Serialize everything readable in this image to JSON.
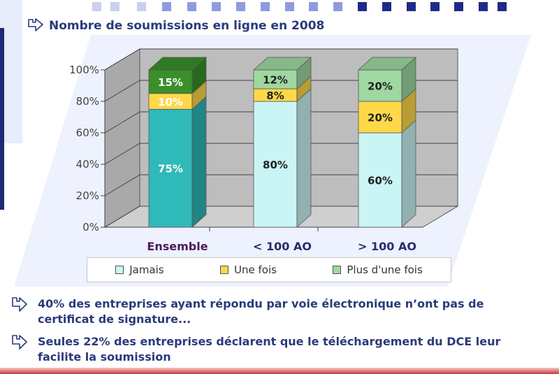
{
  "title": "Nombre de soumissions en ligne en 2008",
  "colors": {
    "jamais": "#2fb9b9",
    "jamais_light": "#c9f5f5",
    "une_fois": "#ffd84a",
    "plus": "#3a8f2a",
    "plus_light": "#9fd8a0",
    "text": "#2b3a7a",
    "deco": "#1e2a88"
  },
  "chart_data": {
    "type": "bar",
    "stacked": true,
    "categories": [
      "Ensemble",
      "< 100 AO",
      "> 100 AO"
    ],
    "series": [
      {
        "name": "Jamais",
        "values": [
          75,
          80,
          60
        ]
      },
      {
        "name": "Une fois",
        "values": [
          10,
          8,
          20
        ]
      },
      {
        "name": "Plus d'une fois",
        "values": [
          15,
          12,
          20
        ]
      }
    ],
    "value_labels": [
      [
        "75%",
        "10%",
        "15%"
      ],
      [
        "80%",
        "8%",
        "12%"
      ],
      [
        "60%",
        "20%",
        "20%"
      ]
    ],
    "y_ticks": [
      "0%",
      "20%",
      "40%",
      "60%",
      "80%",
      "100%"
    ],
    "ylim": [
      0,
      100
    ],
    "legend": [
      "Jamais",
      "Une fois",
      "Plus d'une fois"
    ],
    "legend_position": "bottom"
  },
  "bullets": [
    "40% des entreprises ayant répondu par voie électronique n’ont pas de certificat de signature...",
    "Seules 22% des entreprises déclarent que le téléchargement du DCE leur facilite la soumission"
  ]
}
